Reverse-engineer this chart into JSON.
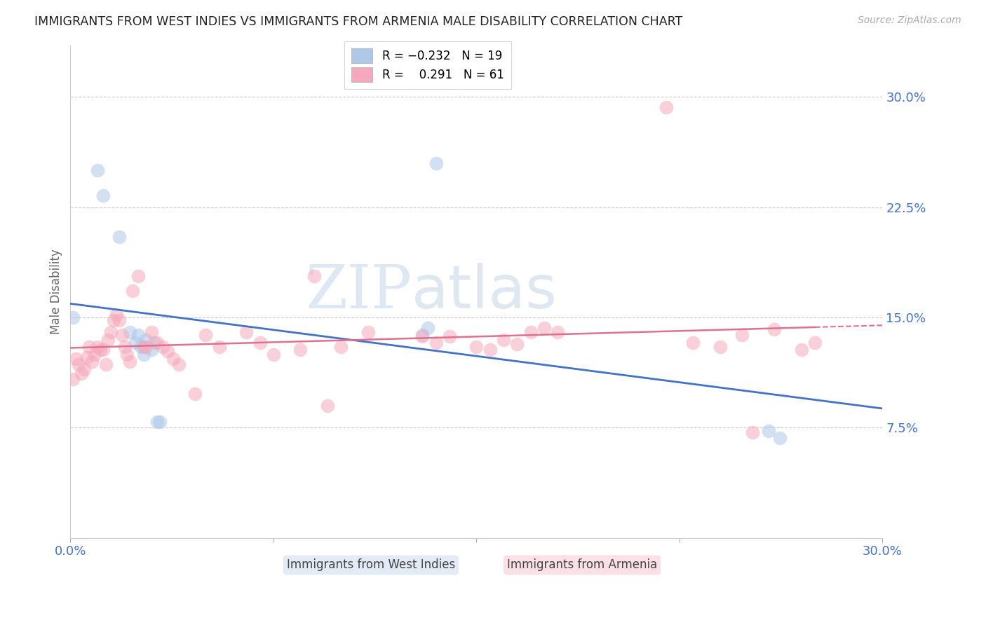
{
  "title": "IMMIGRANTS FROM WEST INDIES VS IMMIGRANTS FROM ARMENIA MALE DISABILITY CORRELATION CHART",
  "source": "Source: ZipAtlas.com",
  "ylabel": "Male Disability",
  "right_yticks": [
    "30.0%",
    "22.5%",
    "15.0%",
    "7.5%"
  ],
  "right_ytick_vals": [
    0.3,
    0.225,
    0.15,
    0.075
  ],
  "xmin": 0.0,
  "xmax": 0.3,
  "ymin": 0.0,
  "ymax": 0.335,
  "watermark_zip": "ZIP",
  "watermark_atlas": "atlas",
  "blue_R": -0.232,
  "blue_N": 19,
  "pink_R": 0.291,
  "pink_N": 61,
  "blue_color": "#adc8e8",
  "pink_color": "#f5a8bc",
  "blue_line_color": "#4472c4",
  "pink_line_color": "#e07090",
  "blue_x": [
    0.001,
    0.01,
    0.012,
    0.018,
    0.022,
    0.024,
    0.025,
    0.026,
    0.027,
    0.028,
    0.03,
    0.031,
    0.032,
    0.033,
    0.13,
    0.132,
    0.135,
    0.258,
    0.262
  ],
  "blue_y": [
    0.15,
    0.25,
    0.233,
    0.205,
    0.14,
    0.133,
    0.138,
    0.13,
    0.125,
    0.135,
    0.128,
    0.133,
    0.079,
    0.079,
    0.138,
    0.143,
    0.255,
    0.073,
    0.068
  ],
  "pink_x": [
    0.001,
    0.002,
    0.003,
    0.004,
    0.005,
    0.006,
    0.007,
    0.008,
    0.009,
    0.01,
    0.011,
    0.012,
    0.013,
    0.014,
    0.015,
    0.016,
    0.017,
    0.018,
    0.019,
    0.02,
    0.021,
    0.022,
    0.023,
    0.025,
    0.027,
    0.028,
    0.03,
    0.032,
    0.034,
    0.036,
    0.038,
    0.04,
    0.046,
    0.05,
    0.055,
    0.065,
    0.07,
    0.075,
    0.085,
    0.09,
    0.095,
    0.1,
    0.11,
    0.13,
    0.135,
    0.14,
    0.15,
    0.155,
    0.16,
    0.165,
    0.17,
    0.175,
    0.18,
    0.22,
    0.23,
    0.24,
    0.248,
    0.252,
    0.26,
    0.27,
    0.275
  ],
  "pink_y": [
    0.108,
    0.122,
    0.118,
    0.112,
    0.115,
    0.123,
    0.13,
    0.12,
    0.125,
    0.13,
    0.128,
    0.128,
    0.118,
    0.135,
    0.14,
    0.148,
    0.152,
    0.148,
    0.138,
    0.13,
    0.125,
    0.12,
    0.168,
    0.178,
    0.13,
    0.13,
    0.14,
    0.133,
    0.13,
    0.127,
    0.122,
    0.118,
    0.098,
    0.138,
    0.13,
    0.14,
    0.133,
    0.125,
    0.128,
    0.178,
    0.09,
    0.13,
    0.14,
    0.137,
    0.133,
    0.137,
    0.13,
    0.128,
    0.135,
    0.132,
    0.14,
    0.143,
    0.14,
    0.293,
    0.133,
    0.13,
    0.138,
    0.072,
    0.142,
    0.128,
    0.133
  ]
}
